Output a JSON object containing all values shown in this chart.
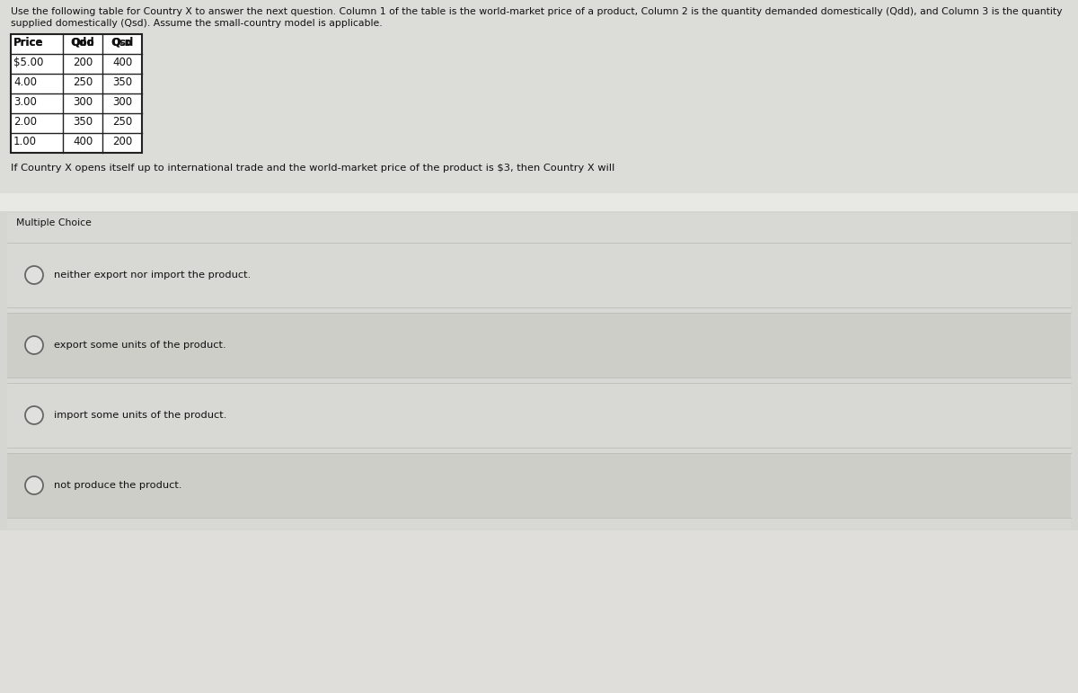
{
  "header_text_line1": "Use the following table for Country X to answer the next question. Column 1 of the table is the world-market price of a product, Column 2 is the quantity demanded domestically (Qdd), and Column 3 is the quantity",
  "header_text_line2": "supplied domestically (Qsd). Assume the small-country model is applicable.",
  "table_headers": [
    "Price",
    "Qdd",
    "Qsd"
  ],
  "table_data": [
    [
      "$5.00",
      "200",
      "400"
    ],
    [
      "4.00",
      "250",
      "350"
    ],
    [
      "3.00",
      "300",
      "300"
    ],
    [
      "2.00",
      "350",
      "250"
    ],
    [
      "1.00",
      "400",
      "200"
    ]
  ],
  "question_text": "If Country X opens itself up to international trade and the world-market price of the product is $3, then Country X will",
  "section_label": "Multiple Choice",
  "choices": [
    "neither export nor import the product.",
    "export some units of the product.",
    "import some units of the product.",
    "not produce the product."
  ],
  "bg_color": "#e8e8e5",
  "top_area_color": "#ddddd8",
  "mc_panel_color": "#d8d8d4",
  "choice_light_color": "#dededd",
  "choice_dark_color": "#d0d0cc",
  "table_bg": "#ffffff",
  "text_color": "#111111",
  "table_border_color": "#222222",
  "header_fontsize": 7.8,
  "question_fontsize": 8.2,
  "choice_fontsize": 8.2,
  "section_fontsize": 7.8,
  "table_fontsize": 8.5
}
